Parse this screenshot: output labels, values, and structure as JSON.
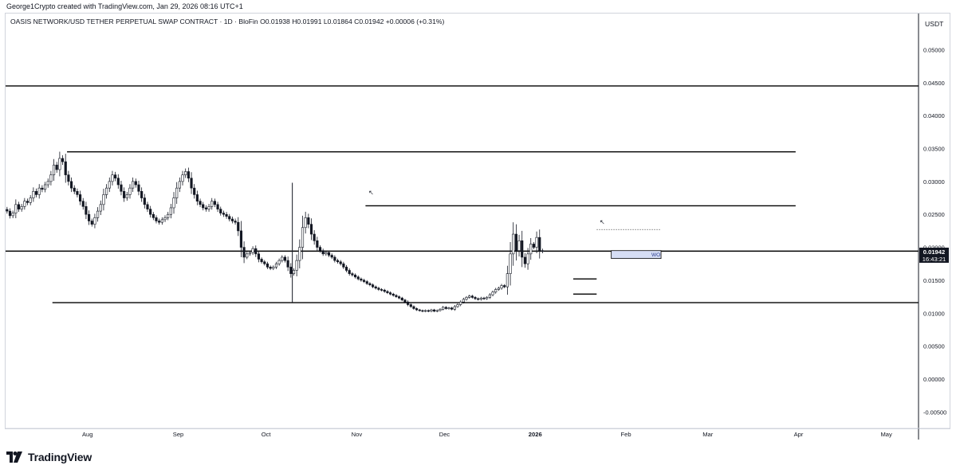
{
  "credit": "George1Crypto created with TradingView.com, Jan 29, 2026 08:16 UTC+1",
  "symbol_line": "OASIS NETWORK/USD TETHER PERPETUAL SWAP CONTRACT · 1D · BloFin  O0.01938  H0.01991  L0.01864  C0.01942  +0.00006 (+0.31%)",
  "currency": "USDT",
  "last_price_label": {
    "price": "0.01942",
    "countdown": "16:43:21"
  },
  "brand": "TradingView",
  "colors": {
    "up": "#131722",
    "down": "#131722",
    "lines": "#000000",
    "label_bg": "#131722",
    "zone_fill": "#d6def5"
  },
  "chart_data": {
    "type": "candlestick",
    "title": "",
    "y_ticks": [
      "0.05000",
      "0.04500",
      "0.04000",
      "0.03500",
      "0.03000",
      "0.02500",
      "0.02000",
      "0.01500",
      "0.01000",
      "0.00500",
      "0.00000",
      "-0.00500"
    ],
    "y_tick_values": [
      0.05,
      0.045,
      0.04,
      0.035,
      0.03,
      0.025,
      0.02,
      0.015,
      0.01,
      0.005,
      0.0,
      -0.005
    ],
    "ylim": [
      -0.0075,
      0.0555
    ],
    "x_ticks": [
      "Aug",
      "Sep",
      "Oct",
      "Nov",
      "Dec",
      "2026",
      "Feb",
      "Mar",
      "Apr",
      "May"
    ],
    "x_tick_dates": [
      "2025-08-01",
      "2025-09-01",
      "2025-10-01",
      "2025-11-01",
      "2025-12-01",
      "2026-01-01",
      "2026-02-01",
      "2026-03-01",
      "2026-04-01",
      "2026-05-01"
    ],
    "xlim": [
      "2025-07-04",
      "2026-05-12"
    ],
    "close_series": {
      "start": "2025-07-04",
      "interval": "1D",
      "values": [
        0.0255,
        0.0248,
        0.0252,
        0.0265,
        0.0258,
        0.0262,
        0.027,
        0.0268,
        0.0275,
        0.0285,
        0.028,
        0.029,
        0.0288,
        0.0295,
        0.03,
        0.031,
        0.0325,
        0.0318,
        0.0335,
        0.033,
        0.031,
        0.03,
        0.029,
        0.0285,
        0.028,
        0.027,
        0.0262,
        0.025,
        0.024,
        0.0235,
        0.0245,
        0.0255,
        0.0265,
        0.028,
        0.029,
        0.03,
        0.031,
        0.0305,
        0.0295,
        0.0285,
        0.0275,
        0.028,
        0.029,
        0.03,
        0.0295,
        0.0285,
        0.0275,
        0.0265,
        0.0258,
        0.025,
        0.0245,
        0.024,
        0.0238,
        0.0242,
        0.0245,
        0.025,
        0.026,
        0.0275,
        0.029,
        0.03,
        0.031,
        0.0315,
        0.0305,
        0.029,
        0.028,
        0.027,
        0.0265,
        0.026,
        0.0258,
        0.0262,
        0.027,
        0.0265,
        0.0258,
        0.0252,
        0.025,
        0.0247,
        0.0243,
        0.024,
        0.0238,
        0.0225,
        0.02,
        0.0185,
        0.019,
        0.0192,
        0.0198,
        0.019,
        0.0182,
        0.0178,
        0.0175,
        0.017,
        0.0168,
        0.017,
        0.0175,
        0.018,
        0.0185,
        0.018,
        0.017,
        0.016,
        0.0165,
        0.018,
        0.02,
        0.023,
        0.0245,
        0.0235,
        0.022,
        0.021,
        0.02,
        0.0195,
        0.019,
        0.0192,
        0.0188,
        0.0185,
        0.018,
        0.0178,
        0.0175,
        0.017,
        0.0165,
        0.016,
        0.0158,
        0.0155,
        0.0152,
        0.015,
        0.0148,
        0.0145,
        0.0143,
        0.014,
        0.0138,
        0.0136,
        0.0135,
        0.0133,
        0.0131,
        0.0129,
        0.0127,
        0.0125,
        0.0123,
        0.012,
        0.0117,
        0.0113,
        0.011,
        0.0107,
        0.0105,
        0.0104,
        0.0103,
        0.0104,
        0.0103,
        0.0105,
        0.0103,
        0.0104,
        0.0106,
        0.0109,
        0.0107,
        0.0108,
        0.0106,
        0.011,
        0.0113,
        0.0117,
        0.0121,
        0.0124,
        0.0126,
        0.0124,
        0.0122,
        0.0121,
        0.0123,
        0.0122,
        0.0124,
        0.0128,
        0.0132,
        0.0136,
        0.0138,
        0.0142,
        0.014,
        0.016,
        0.019,
        0.022,
        0.0195,
        0.021,
        0.0185,
        0.0175,
        0.019,
        0.0205,
        0.02,
        0.0215,
        0.0195,
        0.0194
      ]
    },
    "horizontal_levels": [
      {
        "price": 0.0445
      },
      {
        "price": 0.0345
      },
      {
        "price": 0.0263
      },
      {
        "price": 0.01942
      },
      {
        "price": 0.0116
      }
    ],
    "zone": {
      "label": "WO",
      "top": 0.0195,
      "bottom": 0.0183
    },
    "dotted_level": {
      "price": 0.0227
    },
    "annotations": [
      "↖",
      "↖"
    ]
  }
}
